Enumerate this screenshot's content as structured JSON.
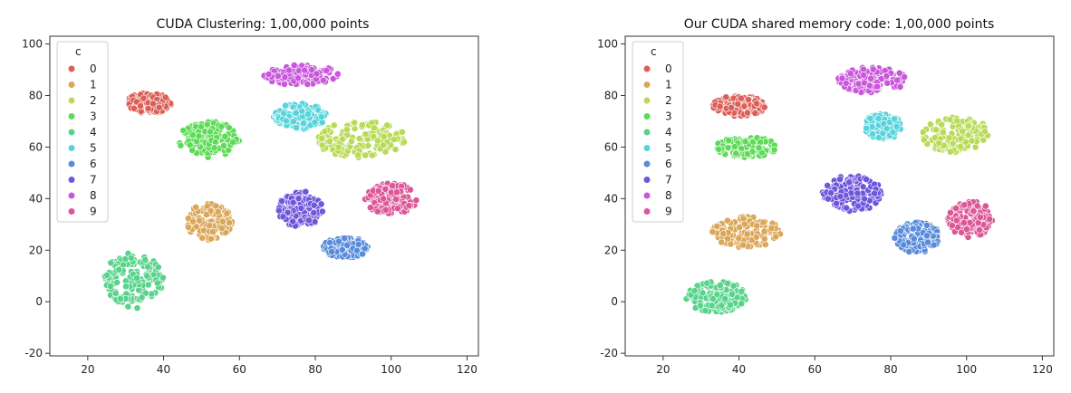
{
  "chart_data": [
    {
      "type": "scatter",
      "title": "CUDA Clustering: 1,00,000 points",
      "xlim": [
        10,
        123
      ],
      "ylim": [
        -21,
        103
      ],
      "xticks": [
        20,
        40,
        60,
        80,
        100,
        120
      ],
      "yticks": [
        -20,
        0,
        20,
        40,
        60,
        80,
        100
      ],
      "grid": false,
      "legend": {
        "title": "c",
        "placement": "upper-left",
        "entries": [
          "0",
          "1",
          "2",
          "3",
          "4",
          "5",
          "6",
          "7",
          "8",
          "9"
        ]
      },
      "clusters": [
        {
          "name": "0",
          "color": "#db5f57",
          "center": [
            36,
            77
          ],
          "spread": [
            6,
            4
          ]
        },
        {
          "name": "1",
          "color": "#dba657",
          "center": [
            52,
            31
          ],
          "spread": [
            6,
            7
          ]
        },
        {
          "name": "2",
          "color": "#b8db57",
          "center": [
            92,
            63
          ],
          "spread": [
            12,
            7
          ]
        },
        {
          "name": "3",
          "color": "#5ddb57",
          "center": [
            52,
            63
          ],
          "spread": [
            8,
            7
          ]
        },
        {
          "name": "4",
          "color": "#57d38a",
          "center": [
            32,
            8
          ],
          "spread": [
            8,
            11
          ]
        },
        {
          "name": "5",
          "color": "#57d3db",
          "center": [
            76,
            72
          ],
          "spread": [
            7,
            5
          ]
        },
        {
          "name": "6",
          "color": "#578bdb",
          "center": [
            88,
            21
          ],
          "spread": [
            6,
            4
          ]
        },
        {
          "name": "7",
          "color": "#6f57db",
          "center": [
            76,
            36
          ],
          "spread": [
            6,
            7
          ]
        },
        {
          "name": "8",
          "color": "#c957db",
          "center": [
            76,
            88
          ],
          "spread": [
            10,
            4
          ]
        },
        {
          "name": "9",
          "color": "#db5797",
          "center": [
            100,
            40
          ],
          "spread": [
            7,
            6
          ]
        }
      ],
      "points_per_cluster": 140
    },
    {
      "type": "scatter",
      "title": "Our CUDA shared memory code: 1,00,000 points",
      "xlim": [
        10,
        123
      ],
      "ylim": [
        -21,
        103
      ],
      "xticks": [
        20,
        40,
        60,
        80,
        100,
        120
      ],
      "yticks": [
        -20,
        0,
        20,
        40,
        60,
        80,
        100
      ],
      "grid": false,
      "legend": {
        "title": "c",
        "placement": "upper-left",
        "entries": [
          "0",
          "1",
          "2",
          "3",
          "4",
          "5",
          "6",
          "7",
          "8",
          "9"
        ]
      },
      "clusters": [
        {
          "name": "0",
          "color": "#db5f57",
          "center": [
            40,
            76
          ],
          "spread": [
            7,
            4
          ]
        },
        {
          "name": "1",
          "color": "#dba657",
          "center": [
            42,
            27
          ],
          "spread": [
            9,
            6
          ]
        },
        {
          "name": "2",
          "color": "#b8db57",
          "center": [
            97,
            65
          ],
          "spread": [
            9,
            7
          ]
        },
        {
          "name": "3",
          "color": "#5ddb57",
          "center": [
            42,
            60
          ],
          "spread": [
            8,
            4
          ]
        },
        {
          "name": "4",
          "color": "#57d38a",
          "center": [
            34,
            2
          ],
          "spread": [
            8,
            6
          ]
        },
        {
          "name": "5",
          "color": "#57d3db",
          "center": [
            78,
            68
          ],
          "spread": [
            5,
            5
          ]
        },
        {
          "name": "6",
          "color": "#578bdb",
          "center": [
            87,
            25
          ],
          "spread": [
            6,
            6
          ]
        },
        {
          "name": "7",
          "color": "#6f57db",
          "center": [
            70,
            42
          ],
          "spread": [
            8,
            7
          ]
        },
        {
          "name": "8",
          "color": "#c957db",
          "center": [
            75,
            86
          ],
          "spread": [
            9,
            5
          ]
        },
        {
          "name": "9",
          "color": "#db5797",
          "center": [
            101,
            32
          ],
          "spread": [
            6,
            7
          ]
        }
      ],
      "points_per_cluster": 140
    }
  ]
}
